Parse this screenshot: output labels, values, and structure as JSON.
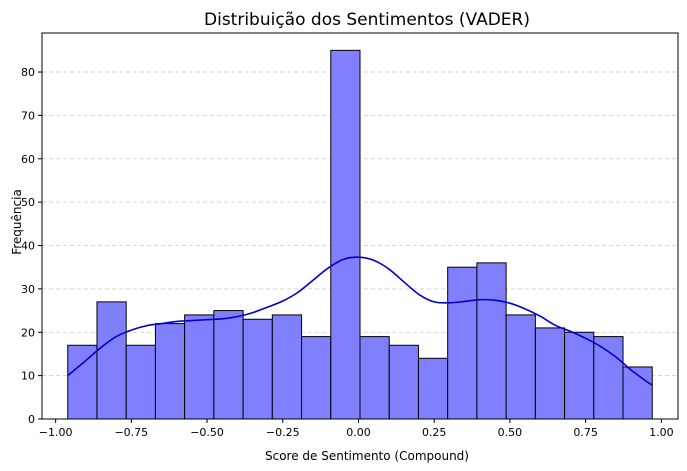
{
  "chart_data": {
    "type": "bar",
    "title": "Distribuição dos Sentimentos (VADER)",
    "xlabel": "Score de Sentimento (Compound)",
    "ylabel": "Frequência",
    "xlim": [
      -1.045,
      1.055
    ],
    "ylim": [
      0,
      89
    ],
    "x_ticks": [
      -1.0,
      -0.75,
      -0.5,
      -0.25,
      0.0,
      0.25,
      0.5,
      0.75,
      1.0
    ],
    "x_tick_labels": [
      "−1.00",
      "−0.75",
      "−0.50",
      "−0.25",
      "0.00",
      "0.25",
      "0.50",
      "0.75",
      "1.00"
    ],
    "y_ticks": [
      0,
      10,
      20,
      30,
      40,
      50,
      60,
      70,
      80
    ],
    "y_tick_labels": [
      "0",
      "10",
      "20",
      "30",
      "40",
      "50",
      "60",
      "70",
      "80"
    ],
    "grid": "y-dashed",
    "bin_edges": [
      -0.96,
      -0.8635,
      -0.767,
      -0.6705,
      -0.574,
      -0.4775,
      -0.381,
      -0.2845,
      -0.188,
      -0.0915,
      0.005,
      0.1015,
      0.198,
      0.2945,
      0.391,
      0.4875,
      0.584,
      0.6805,
      0.777,
      0.8735,
      0.97
    ],
    "values": [
      17,
      27,
      17,
      22,
      24,
      25,
      23,
      24,
      19,
      85,
      19,
      17,
      14,
      35,
      36,
      24,
      21,
      20,
      19,
      12
    ],
    "kde": {
      "x": [
        -0.96,
        -0.9,
        -0.85,
        -0.8,
        -0.75,
        -0.7,
        -0.65,
        -0.6,
        -0.55,
        -0.5,
        -0.45,
        -0.4,
        -0.35,
        -0.3,
        -0.25,
        -0.2,
        -0.15,
        -0.1,
        -0.05,
        0.0,
        0.05,
        0.1,
        0.15,
        0.2,
        0.25,
        0.3,
        0.35,
        0.4,
        0.45,
        0.5,
        0.55,
        0.6,
        0.65,
        0.7,
        0.75,
        0.8,
        0.85,
        0.9,
        0.95,
        0.97
      ],
      "y": [
        10,
        13.5,
        16.5,
        19,
        20.5,
        21.5,
        22,
        22.5,
        22.7,
        22.9,
        23.1,
        23.6,
        24.5,
        25.8,
        27.2,
        29.2,
        32,
        34.8,
        36.8,
        37.3,
        36.6,
        34.6,
        31.6,
        28.7,
        27,
        26.8,
        27.1,
        27.5,
        27.4,
        26.7,
        25.4,
        23.7,
        21.6,
        20.2,
        18.6,
        16.7,
        14.3,
        11.3,
        8.7,
        7.8
      ]
    },
    "colors": {
      "bar_fill": "#8080ff",
      "bar_edge": "#000000",
      "kde_line": "#0000cc",
      "grid": "#c8c8c8"
    }
  }
}
